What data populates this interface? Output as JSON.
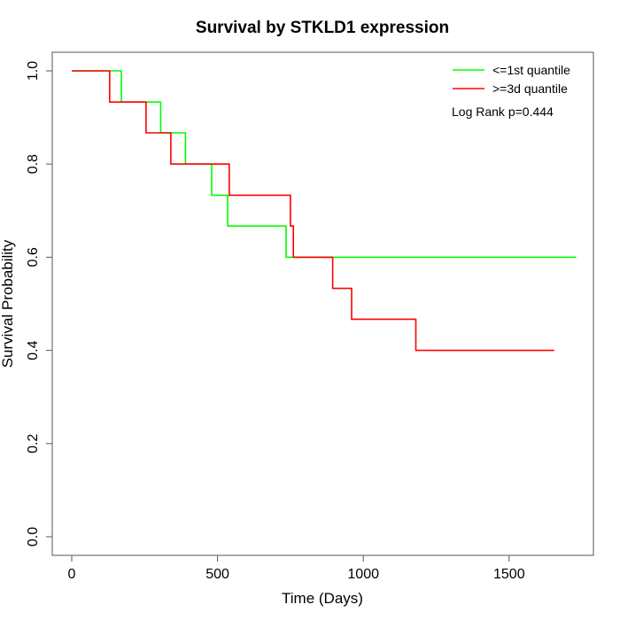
{
  "chart_data": {
    "type": "line",
    "step": true,
    "title": "Survival by STKLD1 expression",
    "xlabel": "Time (Days)",
    "ylabel": "Survival Probability",
    "xlim": [
      0,
      1800
    ],
    "ylim": [
      0,
      1.0
    ],
    "xticks": [
      0,
      500,
      1000,
      1500
    ],
    "yticks": [
      0.0,
      0.2,
      0.4,
      0.6,
      0.8,
      1.0
    ],
    "xtick_labels": [
      "0",
      "500",
      "1000",
      "1500"
    ],
    "ytick_labels": [
      "0.0",
      "0.2",
      "0.4",
      "0.6",
      "0.8",
      "1.0"
    ],
    "grid": false,
    "legend_position": "top-right",
    "annotation": "Log Rank p=0.444",
    "series": [
      {
        "name": "<=1st quantile",
        "color": "#00ff00",
        "times": [
          0,
          170,
          305,
          390,
          480,
          535,
          735,
          1730
        ],
        "survival": [
          1.0,
          0.933,
          0.867,
          0.8,
          0.733,
          0.667,
          0.6,
          0.6
        ]
      },
      {
        "name": ">=3d quantile",
        "color": "#ff0000",
        "times": [
          0,
          130,
          255,
          340,
          540,
          750,
          760,
          895,
          960,
          1180,
          1655
        ],
        "survival": [
          1.0,
          0.933,
          0.867,
          0.8,
          0.733,
          0.667,
          0.6,
          0.533,
          0.467,
          0.4,
          0.4
        ]
      }
    ]
  }
}
